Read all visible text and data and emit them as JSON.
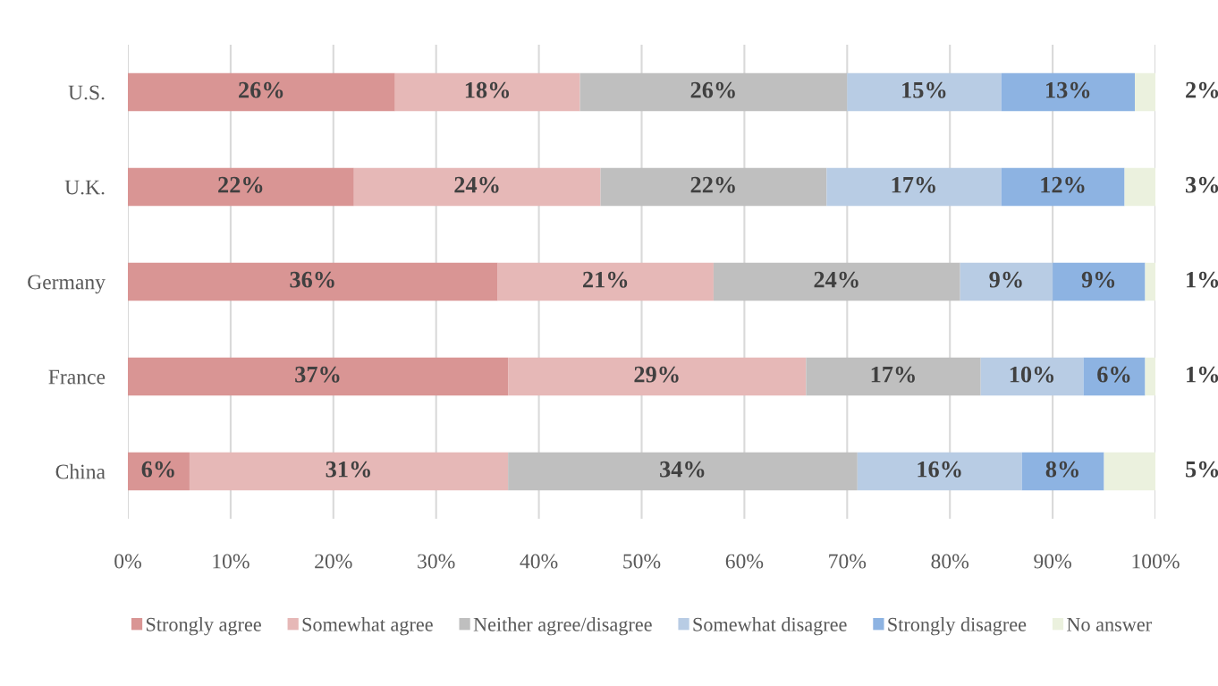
{
  "chart_data": {
    "type": "bar",
    "orientation": "horizontal",
    "stacked": true,
    "categories": [
      "U.S.",
      "U.K.",
      "Germany",
      "France",
      "China"
    ],
    "series": [
      {
        "name": "Strongly agree",
        "color": "#d99594",
        "values": [
          26,
          22,
          36,
          37,
          6
        ],
        "value_labels": [
          "26%",
          "22%",
          "36%",
          "37%",
          "6%"
        ]
      },
      {
        "name": "Somewhat agree",
        "color": "#e6b8b7",
        "values": [
          18,
          24,
          21,
          29,
          31
        ],
        "value_labels": [
          "18%",
          "24%",
          "21%",
          "29%",
          "31%"
        ]
      },
      {
        "name": "Neither agree/disagree",
        "color": "#bfbfbf",
        "values": [
          26,
          22,
          24,
          17,
          34
        ],
        "value_labels": [
          "26%",
          "22%",
          "24%",
          "17%",
          "34%"
        ]
      },
      {
        "name": "Somewhat disagree",
        "color": "#b8cce4",
        "values": [
          15,
          17,
          9,
          10,
          16
        ],
        "value_labels": [
          "15%",
          "17%",
          "9%",
          "10%",
          "16%"
        ]
      },
      {
        "name": "Strongly disagree",
        "color": "#8db3e2",
        "values": [
          13,
          12,
          9,
          6,
          8
        ],
        "value_labels": [
          "13%",
          "12%",
          "9%",
          "6%",
          "8%"
        ]
      },
      {
        "name": "No answer",
        "color": "#ebf1de",
        "values": [
          2,
          3,
          1,
          1,
          5
        ],
        "value_labels": [
          "2%",
          "3%",
          "1%",
          "1%",
          "5%"
        ]
      }
    ],
    "xlim": [
      0,
      100
    ],
    "xticks": [
      {
        "value": 0,
        "label": "0%"
      },
      {
        "value": 10,
        "label": "10%"
      },
      {
        "value": 20,
        "label": "20%"
      },
      {
        "value": 30,
        "label": "30%"
      },
      {
        "value": 40,
        "label": "40%"
      },
      {
        "value": 50,
        "label": "50%"
      },
      {
        "value": 60,
        "label": "60%"
      },
      {
        "value": 70,
        "label": "70%"
      },
      {
        "value": 80,
        "label": "80%"
      },
      {
        "value": 90,
        "label": "90%"
      },
      {
        "value": 100,
        "label": "100%"
      }
    ],
    "grid": "x",
    "legend": "bottom"
  }
}
